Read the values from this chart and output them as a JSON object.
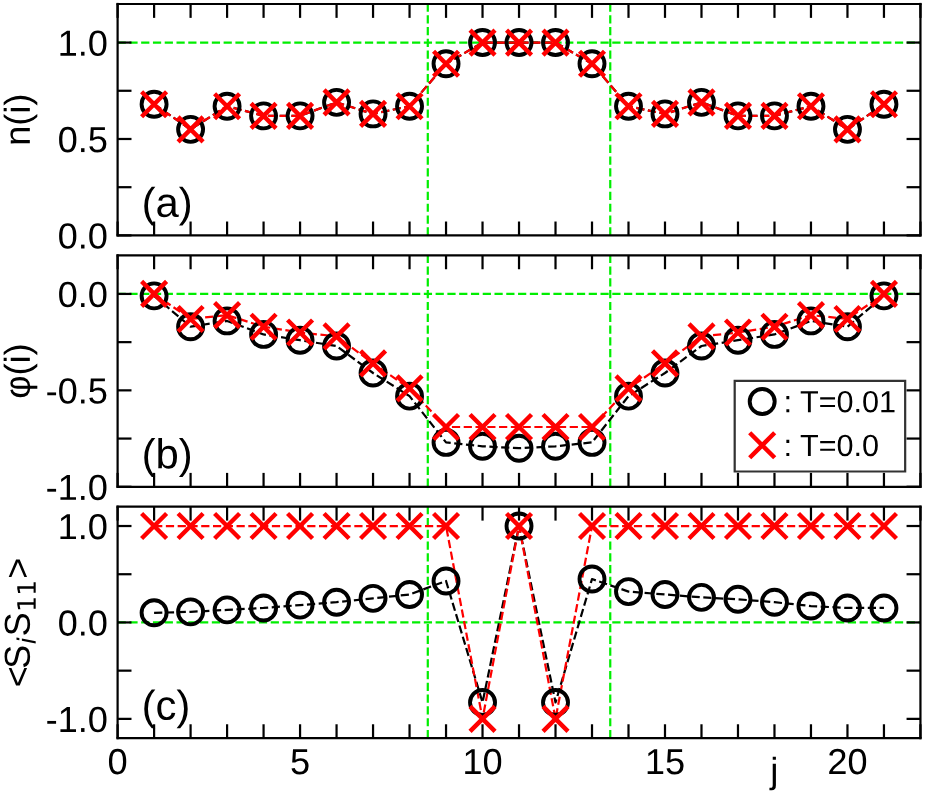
{
  "chart_data": [
    {
      "type": "line",
      "ylabel": "n(i)",
      "annotations": [
        "(a)"
      ],
      "tick_labels": "y",
      "line_style": "dashed",
      "x": [
        1,
        2,
        3,
        4,
        5,
        6,
        7,
        8,
        9,
        10,
        11,
        12,
        13,
        14,
        15,
        16,
        17,
        18,
        19,
        20,
        21
      ],
      "series": [
        {
          "color": "#000000",
          "marker": "circle",
          "values": [
            0.68,
            0.55,
            0.67,
            0.62,
            0.62,
            0.69,
            0.63,
            0.67,
            0.89,
            1.0,
            1.0,
            1.0,
            0.89,
            0.67,
            0.63,
            0.69,
            0.62,
            0.62,
            0.67,
            0.55,
            0.68
          ]
        },
        {
          "color": "#ff0000",
          "marker": "cross",
          "values": [
            0.68,
            0.55,
            0.67,
            0.62,
            0.62,
            0.69,
            0.63,
            0.67,
            0.89,
            1.0,
            1.0,
            1.0,
            0.89,
            0.67,
            0.63,
            0.69,
            0.62,
            0.62,
            0.67,
            0.55,
            0.68
          ]
        }
      ],
      "xlim": [
        0,
        22
      ],
      "xticks": [
        {
          "value": 0,
          "label": null
        },
        {
          "value": 1,
          "label": null
        },
        {
          "value": 2,
          "label": null
        },
        {
          "value": 3,
          "label": null
        },
        {
          "value": 4,
          "label": null
        },
        {
          "value": 5,
          "label": null
        },
        {
          "value": 6,
          "label": null
        },
        {
          "value": 7,
          "label": null
        },
        {
          "value": 8,
          "label": null
        },
        {
          "value": 9,
          "label": null
        },
        {
          "value": 10,
          "label": null
        },
        {
          "value": 11,
          "label": null
        },
        {
          "value": 12,
          "label": null
        },
        {
          "value": 13,
          "label": null
        },
        {
          "value": 14,
          "label": null
        },
        {
          "value": 15,
          "label": null
        },
        {
          "value": 16,
          "label": null
        },
        {
          "value": 17,
          "label": null
        },
        {
          "value": 18,
          "label": null
        },
        {
          "value": 19,
          "label": null
        },
        {
          "value": 20,
          "label": null
        },
        {
          "value": 21,
          "label": null
        },
        {
          "value": 22,
          "label": null
        }
      ],
      "ylim": [
        0,
        1.2
      ],
      "yticks": [
        {
          "value": 0,
          "label": "0.0"
        },
        {
          "value": 0.25,
          "label": null
        },
        {
          "value": 0.5,
          "label": "0.5"
        },
        {
          "value": 0.75,
          "label": null
        },
        {
          "value": 1.0,
          "label": "1.0"
        }
      ],
      "ref_lines": [
        {
          "axis": "y",
          "value": 1.0,
          "color": "#00ee00",
          "line_style": "dashed"
        },
        {
          "axis": "x",
          "value": 8.5,
          "color": "#00ee00",
          "line_style": "dashed"
        },
        {
          "axis": "x",
          "value": 13.5,
          "color": "#00ee00",
          "line_style": "dashed"
        }
      ]
    },
    {
      "type": "line",
      "ylabel": "φ(i)",
      "annotations": [
        "(b)"
      ],
      "tick_labels": "y",
      "line_style": "dashed",
      "legend": "bottom right",
      "x": [
        1,
        2,
        3,
        4,
        5,
        6,
        7,
        8,
        9,
        10,
        11,
        12,
        13,
        14,
        15,
        16,
        17,
        18,
        19,
        20,
        21
      ],
      "series": [
        {
          "name": ": T=0.01",
          "color": "#000000",
          "marker": "circle",
          "values": [
            -0.01,
            -0.17,
            -0.14,
            -0.21,
            -0.24,
            -0.27,
            -0.41,
            -0.53,
            -0.77,
            -0.79,
            -0.8,
            -0.79,
            -0.77,
            -0.53,
            -0.41,
            -0.27,
            -0.24,
            -0.21,
            -0.14,
            -0.17,
            -0.01
          ]
        },
        {
          "name": ": T=0.0",
          "color": "#ff0000",
          "marker": "cross",
          "values": [
            0.0,
            -0.13,
            -0.11,
            -0.17,
            -0.2,
            -0.22,
            -0.36,
            -0.49,
            -0.69,
            -0.69,
            -0.69,
            -0.69,
            -0.69,
            -0.49,
            -0.36,
            -0.22,
            -0.2,
            -0.17,
            -0.11,
            -0.13,
            0.0
          ]
        }
      ],
      "xlim": [
        0,
        22
      ],
      "xticks": [
        {
          "value": 0,
          "label": null
        },
        {
          "value": 1,
          "label": null
        },
        {
          "value": 2,
          "label": null
        },
        {
          "value": 3,
          "label": null
        },
        {
          "value": 4,
          "label": null
        },
        {
          "value": 5,
          "label": null
        },
        {
          "value": 6,
          "label": null
        },
        {
          "value": 7,
          "label": null
        },
        {
          "value": 8,
          "label": null
        },
        {
          "value": 9,
          "label": null
        },
        {
          "value": 10,
          "label": null
        },
        {
          "value": 11,
          "label": null
        },
        {
          "value": 12,
          "label": null
        },
        {
          "value": 13,
          "label": null
        },
        {
          "value": 14,
          "label": null
        },
        {
          "value": 15,
          "label": null
        },
        {
          "value": 16,
          "label": null
        },
        {
          "value": 17,
          "label": null
        },
        {
          "value": 18,
          "label": null
        },
        {
          "value": 19,
          "label": null
        },
        {
          "value": 20,
          "label": null
        },
        {
          "value": 21,
          "label": null
        },
        {
          "value": 22,
          "label": null
        }
      ],
      "ylim": [
        -1.0,
        0.2
      ],
      "yticks": [
        {
          "value": -1.0,
          "label": "-1.0"
        },
        {
          "value": -0.75,
          "label": null
        },
        {
          "value": -0.5,
          "label": "-0.5"
        },
        {
          "value": -0.25,
          "label": null
        },
        {
          "value": 0.0,
          "label": "0.0"
        }
      ],
      "ref_lines": [
        {
          "axis": "y",
          "value": 0.0,
          "color": "#00ee00",
          "line_style": "dashed"
        },
        {
          "axis": "x",
          "value": 8.5,
          "color": "#00ee00",
          "line_style": "dashed"
        },
        {
          "axis": "x",
          "value": 13.5,
          "color": "#00ee00",
          "line_style": "dashed"
        }
      ]
    },
    {
      "type": "line",
      "ylabel": "<S$_{i}$S$_{11}$>",
      "xlabel": "j",
      "annotations": [
        "(c)"
      ],
      "line_style": "dashed",
      "x": [
        1,
        2,
        3,
        4,
        5,
        6,
        7,
        8,
        9,
        10,
        11,
        12,
        13,
        14,
        15,
        16,
        17,
        18,
        19,
        20,
        21
      ],
      "series": [
        {
          "color": "#000000",
          "marker": "circle",
          "values": [
            0.1,
            0.11,
            0.13,
            0.15,
            0.18,
            0.21,
            0.25,
            0.29,
            0.43,
            -0.83,
            1.0,
            -0.83,
            0.45,
            0.32,
            0.29,
            0.26,
            0.24,
            0.21,
            0.17,
            0.15,
            0.15
          ]
        },
        {
          "color": "#ff0000",
          "marker": "cross",
          "values": [
            1.0,
            1.0,
            1.0,
            1.0,
            1.0,
            1.0,
            1.0,
            1.0,
            1.0,
            -1.0,
            1.0,
            -1.0,
            1.0,
            1.0,
            1.0,
            1.0,
            1.0,
            1.0,
            1.0,
            1.0,
            1.0
          ]
        }
      ],
      "xlim": [
        0,
        22
      ],
      "xticks": [
        0,
        {
          "value": 1,
          "label": null
        },
        {
          "value": 2,
          "label": null
        },
        {
          "value": 3,
          "label": null
        },
        {
          "value": 4,
          "label": null
        },
        5,
        {
          "value": 6,
          "label": null
        },
        {
          "value": 7,
          "label": null
        },
        {
          "value": 8,
          "label": null
        },
        {
          "value": 9,
          "label": null
        },
        10,
        {
          "value": 11,
          "label": null
        },
        {
          "value": 12,
          "label": null
        },
        {
          "value": 13,
          "label": null
        },
        {
          "value": 14,
          "label": null
        },
        15,
        {
          "value": 16,
          "label": null
        },
        {
          "value": 17,
          "label": null
        },
        {
          "value": 18,
          "label": null
        },
        {
          "value": 19,
          "label": null
        },
        20,
        {
          "value": 21,
          "label": null
        },
        {
          "value": 22,
          "label": null
        }
      ],
      "ylim": [
        -1.2,
        1.2
      ],
      "yticks": [
        {
          "value": -1.0,
          "label": "-1.0"
        },
        {
          "value": -0.5,
          "label": null
        },
        {
          "value": 0.0,
          "label": "0.0"
        },
        {
          "value": 0.5,
          "label": null
        },
        {
          "value": 1.0,
          "label": "1.0"
        }
      ],
      "ref_lines": [
        {
          "axis": "y",
          "value": 0.0,
          "color": "#00ee00",
          "line_style": "dashed"
        },
        {
          "axis": "x",
          "value": 8.5,
          "color": "#00ee00",
          "line_style": "dashed"
        },
        {
          "axis": "x",
          "value": 13.5,
          "color": "#00ee00",
          "line_style": "dashed"
        }
      ]
    }
  ]
}
